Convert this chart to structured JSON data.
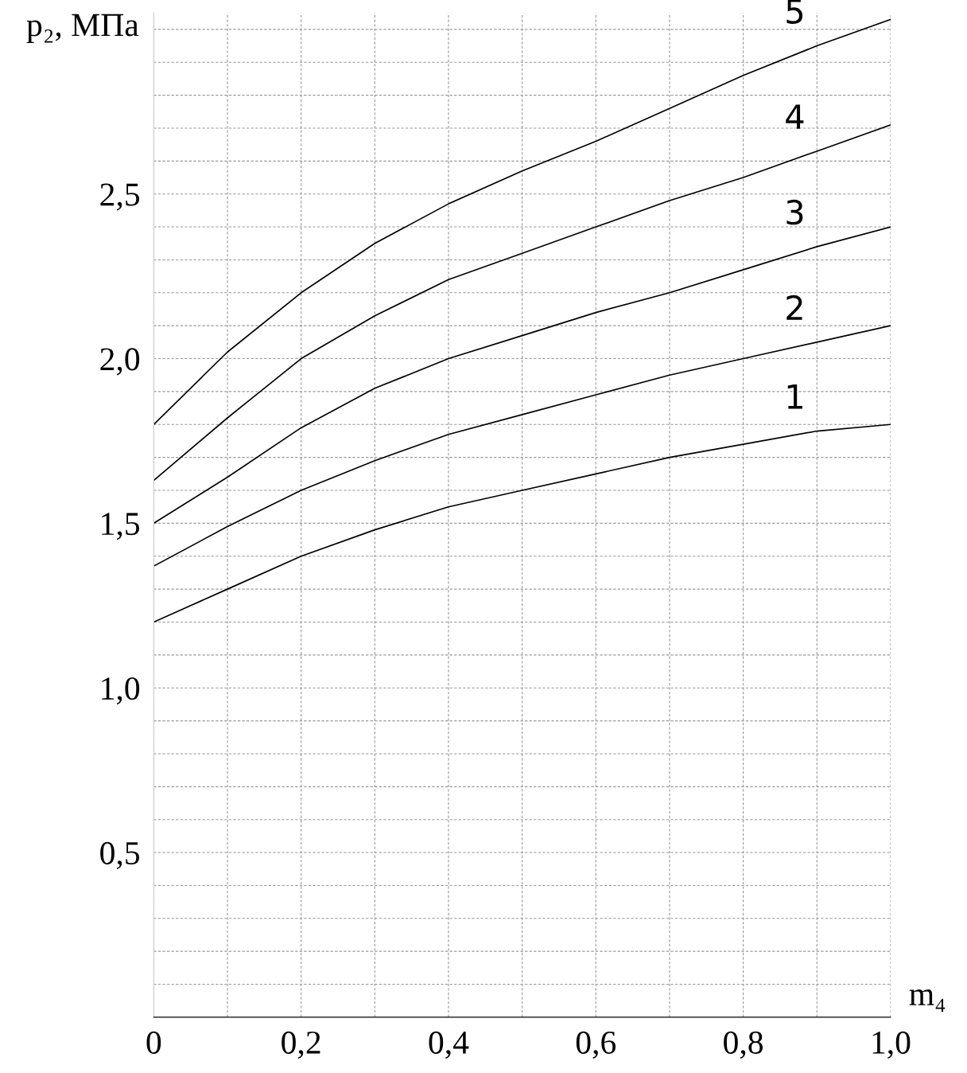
{
  "chart_data": {
    "type": "line",
    "ylabel": "p₂, МПа",
    "xlabel": "m₄",
    "x": [
      0,
      0.1,
      0.2,
      0.3,
      0.4,
      0.5,
      0.6,
      0.7,
      0.8,
      0.9,
      1.0
    ],
    "series": [
      {
        "name": "1",
        "color": "#000000",
        "values": [
          1.2,
          1.3,
          1.4,
          1.48,
          1.55,
          1.6,
          1.65,
          1.7,
          1.74,
          1.78,
          1.8
        ]
      },
      {
        "name": "2",
        "color": "#000000",
        "values": [
          1.37,
          1.49,
          1.6,
          1.69,
          1.77,
          1.83,
          1.89,
          1.95,
          2.0,
          2.05,
          2.1
        ]
      },
      {
        "name": "3",
        "color": "#000000",
        "values": [
          1.5,
          1.64,
          1.79,
          1.91,
          2.0,
          2.07,
          2.14,
          2.2,
          2.27,
          2.34,
          2.4
        ]
      },
      {
        "name": "4",
        "color": "#000000",
        "values": [
          1.63,
          1.82,
          2.0,
          2.13,
          2.24,
          2.32,
          2.4,
          2.48,
          2.55,
          2.63,
          2.71
        ]
      },
      {
        "name": "5",
        "color": "#000000",
        "values": [
          1.8,
          2.02,
          2.2,
          2.35,
          2.47,
          2.57,
          2.66,
          2.76,
          2.86,
          2.95,
          3.03
        ]
      }
    ],
    "xlim": [
      0,
      1.0
    ],
    "ylim": [
      0,
      3.05
    ],
    "xticks": [
      {
        "value": 0,
        "label": "0"
      },
      {
        "value": 0.1,
        "label": null
      },
      {
        "value": 0.2,
        "label": "0,2"
      },
      {
        "value": 0.3,
        "label": null
      },
      {
        "value": 0.4,
        "label": "0,4"
      },
      {
        "value": 0.5,
        "label": null
      },
      {
        "value": 0.6,
        "label": "0,6"
      },
      {
        "value": 0.7,
        "label": null
      },
      {
        "value": 0.8,
        "label": "0,8"
      },
      {
        "value": 0.9,
        "label": null
      },
      {
        "value": 1.0,
        "label": "1,0"
      }
    ],
    "yticks": [
      {
        "value": 0.1,
        "label": null
      },
      {
        "value": 0.2,
        "label": null
      },
      {
        "value": 0.3,
        "label": null
      },
      {
        "value": 0.4,
        "label": null
      },
      {
        "value": 0.5,
        "label": "0,5"
      },
      {
        "value": 0.6,
        "label": null
      },
      {
        "value": 0.7,
        "label": null
      },
      {
        "value": 0.8,
        "label": null
      },
      {
        "value": 0.9,
        "label": null
      },
      {
        "value": 1.0,
        "label": "1,0"
      },
      {
        "value": 1.1,
        "label": null
      },
      {
        "value": 1.2,
        "label": null
      },
      {
        "value": 1.3,
        "label": null
      },
      {
        "value": 1.4,
        "label": null
      },
      {
        "value": 1.5,
        "label": "1,5"
      },
      {
        "value": 1.6,
        "label": null
      },
      {
        "value": 1.7,
        "label": null
      },
      {
        "value": 1.8,
        "label": null
      },
      {
        "value": 1.9,
        "label": null
      },
      {
        "value": 2.0,
        "label": "2,0"
      },
      {
        "value": 2.1,
        "label": null
      },
      {
        "value": 2.2,
        "label": null
      },
      {
        "value": 2.3,
        "label": null
      },
      {
        "value": 2.4,
        "label": null
      },
      {
        "value": 2.5,
        "label": "2,5"
      },
      {
        "value": 2.6,
        "label": null
      },
      {
        "value": 2.7,
        "label": null
      },
      {
        "value": 2.8,
        "label": null
      },
      {
        "value": 2.9,
        "label": null
      },
      {
        "value": 3.0,
        "label": null
      }
    ],
    "grid": true,
    "marker": "none",
    "line_style": "solid"
  }
}
